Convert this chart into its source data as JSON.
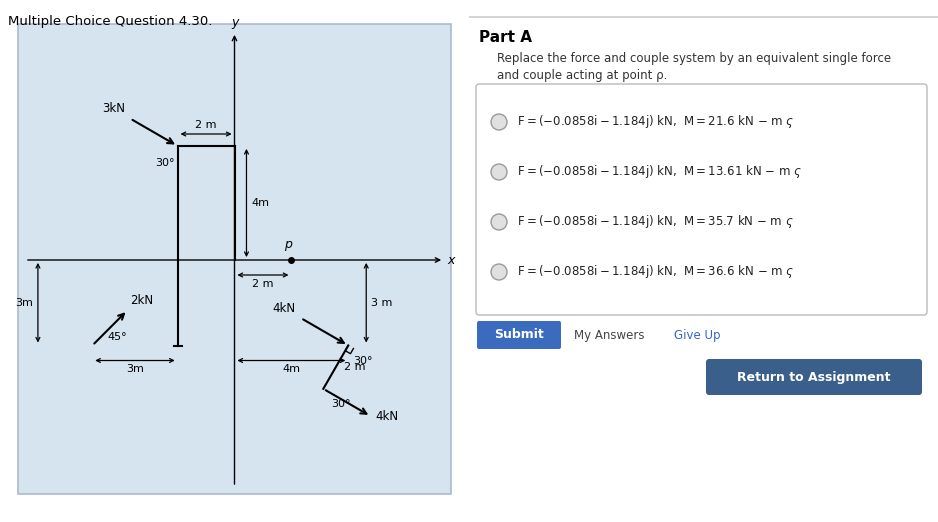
{
  "title": "Multiple Choice Question 4.30.",
  "bg_left": "#d6e4f0",
  "bg_right": "#ffffff",
  "part_a_title": "Part A",
  "part_a_desc_line1": "Replace the force and couple system by an equivalent single force",
  "part_a_desc_line2": "and couple acting at point ρ.",
  "choices": [
    "F = (−0.0858i – 1.184j) kN,  M = 21.6 kN – m ς",
    "F = (−0.0858i – 1.184j) kN,  M = 13.61 kN – m ς",
    "F = (−0.0858i – 1.184j) kN,  M = 35.7 kN – m ς",
    "F = (−0.0858i – 1.184j) kN,  M = 36.6 kN – m ς"
  ],
  "submit_color": "#3a6bbf",
  "return_color": "#3a5f8a",
  "divider_color": "#cccccc"
}
